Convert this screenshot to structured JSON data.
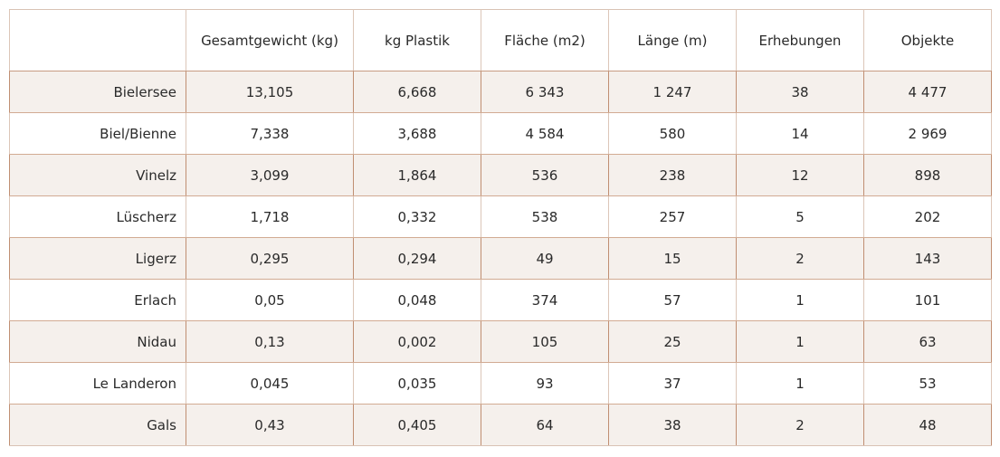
{
  "chart_data": {
    "type": "table",
    "columns": [
      "",
      "Gesamtgewicht (kg)",
      "kg Plastik",
      "Fläche (m2)",
      "Länge (m)",
      "Erhebungen",
      "Objekte"
    ],
    "rows": [
      [
        "Bielersee",
        "13,105",
        "6,668",
        "6 343",
        "1 247",
        "38",
        "4 477"
      ],
      [
        "Biel/Bienne",
        "7,338",
        "3,688",
        "4 584",
        "580",
        "14",
        "2 969"
      ],
      [
        "Vinelz",
        "3,099",
        "1,864",
        "536",
        "238",
        "12",
        "898"
      ],
      [
        "Lüscherz",
        "1,718",
        "0,332",
        "538",
        "257",
        "5",
        "202"
      ],
      [
        "Ligerz",
        "0,295",
        "0,294",
        "49",
        "15",
        "2",
        "143"
      ],
      [
        "Erlach",
        "0,05",
        "0,048",
        "374",
        "57",
        "1",
        "101"
      ],
      [
        "Nidau",
        "0,13",
        "0,002",
        "105",
        "25",
        "1",
        "63"
      ],
      [
        "Le Landeron",
        "0,045",
        "0,035",
        "93",
        "37",
        "1",
        "53"
      ],
      [
        "Gals",
        "0,43",
        "0,405",
        "64",
        "38",
        "2",
        "48"
      ]
    ]
  },
  "colors": {
    "stripe": "#f5f0ec",
    "border": "#c08e72",
    "text": "#2a2a2a"
  }
}
